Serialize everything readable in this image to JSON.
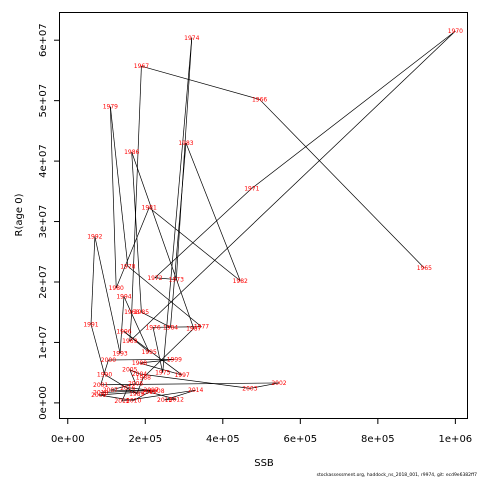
{
  "chart_data": {
    "type": "line",
    "xlabel": "SSB",
    "ylabel": "R(age 0)",
    "xlim": [
      -20000,
      1030000
    ],
    "ylim": [
      -2500000,
      64500000
    ],
    "x_ticks": [
      {
        "value": 0,
        "label": "0e+00"
      },
      {
        "value": 200000,
        "label": "2e+05"
      },
      {
        "value": 400000,
        "label": "4e+05"
      },
      {
        "value": 600000,
        "label": "6e+05"
      },
      {
        "value": 800000,
        "label": "8e+05"
      },
      {
        "value": 1000000,
        "label": "1e+06"
      }
    ],
    "y_ticks": [
      {
        "value": 0,
        "label": "0e+00"
      },
      {
        "value": 10000000,
        "label": "1e+07"
      },
      {
        "value": 20000000,
        "label": "2e+07"
      },
      {
        "value": 30000000,
        "label": "3e+07"
      },
      {
        "value": 40000000,
        "label": "4e+07"
      },
      {
        "value": 50000000,
        "label": "5e+07"
      },
      {
        "value": 60000000,
        "label": "6e+07"
      }
    ],
    "grid": false,
    "line_color": "#000000",
    "label_color": "#ff0000",
    "points": [
      {
        "year": "1965",
        "x": 920000,
        "y": 22300000
      },
      {
        "year": "1966",
        "x": 495000,
        "y": 50200000
      },
      {
        "year": "1967",
        "x": 190000,
        "y": 55700000
      },
      {
        "year": "1968",
        "x": 165000,
        "y": 15000000
      },
      {
        "year": "1969",
        "x": 160000,
        "y": 10200000
      },
      {
        "year": "1970",
        "x": 1000000,
        "y": 61500000
      },
      {
        "year": "1971",
        "x": 475000,
        "y": 35500000
      },
      {
        "year": "1972",
        "x": 225000,
        "y": 20700000
      },
      {
        "year": "1973",
        "x": 280000,
        "y": 20400000
      },
      {
        "year": "1974",
        "x": 320000,
        "y": 60400000
      },
      {
        "year": "1975",
        "x": 245000,
        "y": 5000000
      },
      {
        "year": "1976",
        "x": 220000,
        "y": 12500000
      },
      {
        "year": "1977",
        "x": 345000,
        "y": 12600000
      },
      {
        "year": "1978",
        "x": 155000,
        "y": 22600000
      },
      {
        "year": "1979",
        "x": 110000,
        "y": 49000000
      },
      {
        "year": "1980",
        "x": 125000,
        "y": 19000000
      },
      {
        "year": "1981",
        "x": 210000,
        "y": 32300000
      },
      {
        "year": "1982",
        "x": 445000,
        "y": 20200000
      },
      {
        "year": "1983",
        "x": 305000,
        "y": 43000000
      },
      {
        "year": "1984",
        "x": 265000,
        "y": 12500000
      },
      {
        "year": "1985",
        "x": 190000,
        "y": 15000000
      },
      {
        "year": "1986",
        "x": 165000,
        "y": 41500000
      },
      {
        "year": "1987",
        "x": 325000,
        "y": 12300000
      },
      {
        "year": "1988",
        "x": 195000,
        "y": 4200000
      },
      {
        "year": "1989",
        "x": 178000,
        "y": 1500000
      },
      {
        "year": "1990",
        "x": 95000,
        "y": 4700000
      },
      {
        "year": "1991",
        "x": 60000,
        "y": 13000000
      },
      {
        "year": "1992",
        "x": 70000,
        "y": 27500000
      },
      {
        "year": "1993",
        "x": 135000,
        "y": 8200000
      },
      {
        "year": "1994",
        "x": 145000,
        "y": 17600000
      },
      {
        "year": "1995",
        "x": 210000,
        "y": 8400000
      },
      {
        "year": "1996",
        "x": 145000,
        "y": 11800000
      },
      {
        "year": "1997",
        "x": 295000,
        "y": 4600000
      },
      {
        "year": "1998",
        "x": 185000,
        "y": 6600000
      },
      {
        "year": "1999",
        "x": 275000,
        "y": 7200000
      },
      {
        "year": "2000",
        "x": 105000,
        "y": 7100000
      },
      {
        "year": "2001",
        "x": 85000,
        "y": 3000000
      },
      {
        "year": "2002",
        "x": 545000,
        "y": 3300000
      },
      {
        "year": "2003",
        "x": 470000,
        "y": 2400000
      },
      {
        "year": "2004",
        "x": 185000,
        "y": 4800000
      },
      {
        "year": "2005",
        "x": 160000,
        "y": 5500000
      },
      {
        "year": "2006",
        "x": 175000,
        "y": 3200000
      },
      {
        "year": "2007",
        "x": 110000,
        "y": 2100000
      },
      {
        "year": "2008",
        "x": 230000,
        "y": 2000000
      },
      {
        "year": "2009",
        "x": 80000,
        "y": 1300000
      },
      {
        "year": "2010",
        "x": 170000,
        "y": 400000
      },
      {
        "year": "2011",
        "x": 210000,
        "y": 1800000
      },
      {
        "year": "2012",
        "x": 280000,
        "y": 600000
      },
      {
        "year": "2013",
        "x": 250000,
        "y": 500000
      },
      {
        "year": "2014",
        "x": 330000,
        "y": 2100000
      },
      {
        "year": "2015",
        "x": 140000,
        "y": 300000
      },
      {
        "year": "2016",
        "x": 155000,
        "y": 2500000
      },
      {
        "year": "2017",
        "x": 215000,
        "y": 2100000
      },
      {
        "year": "2018",
        "x": 85000,
        "y": 1700000
      }
    ]
  },
  "footnote": "stockassessment.org, haddock_ns_2018_001, r9974, git: ecd9e6382ff7"
}
